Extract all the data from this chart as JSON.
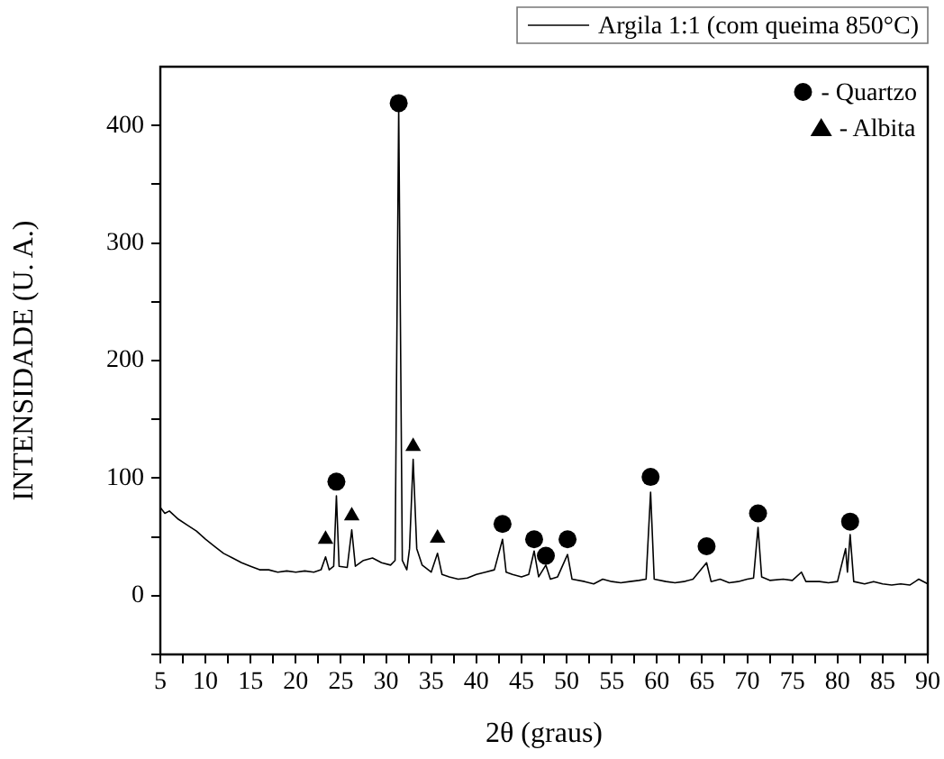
{
  "chart_data": {
    "type": "line",
    "xlabel": "2θ (graus)",
    "ylabel": "INTENSIDADE (U. A.)",
    "xlim": [
      5,
      90
    ],
    "ylim": [
      -50,
      450
    ],
    "xticks": [
      5,
      {
        "value": 7.5,
        "label": null
      },
      10,
      {
        "value": 12.5,
        "label": null
      },
      15,
      {
        "value": 17.5,
        "label": null
      },
      20,
      {
        "value": 22.5,
        "label": null
      },
      25,
      {
        "value": 27.5,
        "label": null
      },
      30,
      {
        "value": 32.5,
        "label": null
      },
      35,
      {
        "value": 37.5,
        "label": null
      },
      40,
      {
        "value": 42.5,
        "label": null
      },
      45,
      {
        "value": 47.5,
        "label": null
      },
      50,
      {
        "value": 52.5,
        "label": null
      },
      55,
      {
        "value": 57.5,
        "label": null
      },
      60,
      {
        "value": 62.5,
        "label": null
      },
      65,
      {
        "value": 67.5,
        "label": null
      },
      70,
      {
        "value": 72.5,
        "label": null
      },
      75,
      {
        "value": 77.5,
        "label": null
      },
      80,
      {
        "value": 82.5,
        "label": null
      },
      85,
      {
        "value": 87.5,
        "label": null
      },
      90
    ],
    "yticks": [
      {
        "value": -50,
        "label": null
      },
      0,
      {
        "value": 50,
        "label": null
      },
      100,
      {
        "value": 150,
        "label": null
      },
      200,
      {
        "value": 250,
        "label": null
      },
      300,
      {
        "value": 350,
        "label": null
      },
      400
    ],
    "legend": "top right",
    "grid": false,
    "series": [
      {
        "name": "Argila 1:1 (com queima 850°C)",
        "color": "#000000",
        "marker": "none",
        "x": [
          5,
          5.5,
          6,
          7,
          8,
          9,
          10,
          11,
          12,
          13,
          14,
          15,
          16,
          17,
          18,
          19,
          20,
          21,
          22,
          22.8,
          23.3,
          23.7,
          24.2,
          24.5,
          24.8,
          25.7,
          26.2,
          26.6,
          27.5,
          28.5,
          29.5,
          30.5,
          31,
          31.4,
          31.8,
          32.3,
          32.6,
          33,
          33.4,
          34,
          35,
          35.7,
          36.2,
          37,
          38,
          39,
          40,
          41,
          42,
          42.9,
          43.3,
          44,
          45,
          45.8,
          46.4,
          46.9,
          47.7,
          48.2,
          49,
          50.1,
          50.6,
          52,
          53,
          54,
          55,
          56,
          57,
          58,
          58.8,
          59.3,
          59.7,
          61,
          62,
          63,
          64,
          65.5,
          66,
          67,
          68,
          69,
          70,
          70.7,
          71.2,
          71.6,
          72.5,
          74,
          75,
          76,
          76.5,
          78,
          79,
          80,
          80.9,
          81.1,
          81.4,
          81.8,
          83,
          84,
          85,
          86,
          87,
          88,
          89,
          90
        ],
        "values": [
          75,
          70,
          72,
          65,
          60,
          55,
          48,
          42,
          36,
          32,
          28,
          25,
          22,
          22,
          20,
          21,
          20,
          21,
          20,
          22,
          33,
          22,
          25,
          85,
          25,
          24,
          56,
          25,
          30,
          32,
          28,
          26,
          30,
          415,
          30,
          22,
          40,
          116,
          40,
          26,
          20,
          36,
          18,
          16,
          14,
          15,
          18,
          20,
          22,
          48,
          20,
          18,
          16,
          18,
          38,
          16,
          26,
          14,
          16,
          35,
          14,
          12,
          10,
          14,
          12,
          11,
          12,
          13,
          14,
          88,
          14,
          12,
          11,
          12,
          14,
          28,
          12,
          14,
          11,
          12,
          14,
          15,
          58,
          16,
          13,
          14,
          13,
          20,
          12,
          12,
          11,
          12,
          40,
          20,
          52,
          12,
          10,
          12,
          10,
          9,
          10,
          9,
          14,
          10
        ]
      },
      {
        "name": "- Quartzo",
        "type": "scatter",
        "color": "#000000",
        "marker": "circle",
        "x": [
          24.5,
          31.4,
          42.9,
          46.4,
          47.7,
          50.1,
          59.3,
          65.5,
          71.2,
          81.4
        ],
        "values": [
          97,
          419,
          61,
          48,
          34,
          48,
          101,
          42,
          70,
          63
        ]
      },
      {
        "name": "- Albita",
        "type": "scatter",
        "color": "#000000",
        "marker": "triangle",
        "x": [
          23.3,
          26.2,
          33.0,
          35.7
        ],
        "values": [
          48,
          68,
          127,
          49
        ]
      }
    ]
  }
}
